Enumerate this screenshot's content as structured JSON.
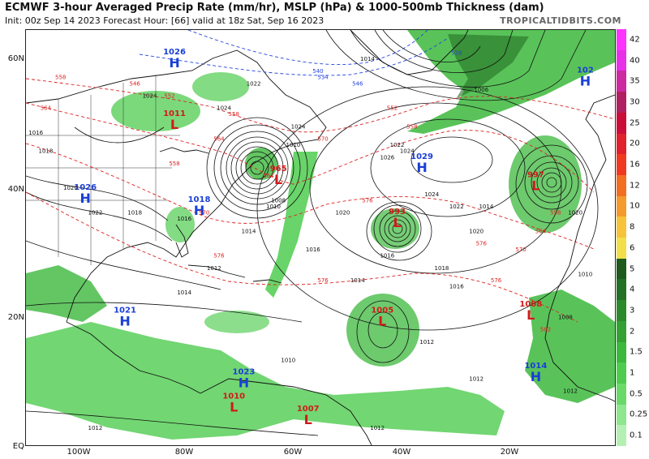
{
  "header": {
    "title": "ECMWF 3-hour Averaged Precip Rate (mm/hr), MSLP (hPa) & 1000-500mb Thickness (dam)",
    "subtitle": "Init: 00z Sep 14 2023   Forecast Hour: [66]   valid at 18z Sat, Sep 16 2023",
    "brand": "TROPICALTIDBITS.COM"
  },
  "axes": {
    "lat_labels": [
      "60N",
      "40N",
      "20N",
      "EQ"
    ],
    "lon_labels": [
      "100W",
      "80W",
      "60W",
      "40W",
      "20W"
    ]
  },
  "colorbar": {
    "labels": [
      "42",
      "40",
      "35",
      "30",
      "25",
      "20",
      "16",
      "12",
      "10",
      "8",
      "6",
      "5",
      "4",
      "3",
      "2",
      "1.5",
      "1",
      "0.5",
      "0.25",
      "0.1"
    ],
    "colors": [
      "#ff33ff",
      "#e830e8",
      "#cc2aa0",
      "#b02060",
      "#cc0d3a",
      "#e0202c",
      "#f03a1f",
      "#f26f22",
      "#f59a2c",
      "#f7c33a",
      "#f2df4a",
      "#1e5a1e",
      "#247024",
      "#2c8a2c",
      "#34a134",
      "#3cb83c",
      "#4fcc4f",
      "#6ad96a",
      "#8ee68e",
      "#b4f0b4"
    ]
  },
  "pressure_systems": [
    {
      "type": "H",
      "value": "1026",
      "lon": -87,
      "lat": 61
    },
    {
      "type": "L",
      "value": "1011",
      "lon": -87,
      "lat": 51
    },
    {
      "type": "H",
      "value": "1026",
      "lon": -105,
      "lat": 39
    },
    {
      "type": "H",
      "value": "1018",
      "lon": -82,
      "lat": 37
    },
    {
      "type": "L",
      "value": "965",
      "lon": -66,
      "lat": 42
    },
    {
      "type": "L",
      "value": "993",
      "lon": -42,
      "lat": 35
    },
    {
      "type": "H",
      "value": "1029",
      "lon": -37,
      "lat": 44
    },
    {
      "type": "L",
      "value": "997",
      "lon": -14,
      "lat": 41
    },
    {
      "type": "H",
      "value": "102",
      "lon": -4,
      "lat": 58
    },
    {
      "type": "H",
      "value": "1021",
      "lon": -97,
      "lat": 19
    },
    {
      "type": "H",
      "value": "1023",
      "lon": -73,
      "lat": 9
    },
    {
      "type": "L",
      "value": "1005",
      "lon": -45,
      "lat": 19
    },
    {
      "type": "L",
      "value": "1008",
      "lon": -15,
      "lat": 20
    },
    {
      "type": "H",
      "value": "1014",
      "lon": -14,
      "lat": 10
    },
    {
      "type": "L",
      "value": "1007",
      "lon": -60,
      "lat": 3
    },
    {
      "type": "L",
      "value": "1010",
      "lon": -75,
      "lat": 5
    }
  ],
  "isobar_labels": [
    {
      "text": "1024",
      "lon": -92,
      "lat": 55
    },
    {
      "text": "1022",
      "lon": -71,
      "lat": 57
    },
    {
      "text": "1014",
      "lon": -48,
      "lat": 61
    },
    {
      "text": "1006",
      "lon": -25,
      "lat": 56
    },
    {
      "text": "1022",
      "lon": -42,
      "lat": 47
    },
    {
      "text": "1024",
      "lon": -40,
      "lat": 46
    },
    {
      "text": "1026",
      "lon": -44,
      "lat": 45
    },
    {
      "text": "1024",
      "lon": -35,
      "lat": 39
    },
    {
      "text": "1022",
      "lon": -30,
      "lat": 37
    },
    {
      "text": "1020",
      "lon": -26,
      "lat": 33
    },
    {
      "text": "1018",
      "lon": -33,
      "lat": 27
    },
    {
      "text": "1016",
      "lon": -44,
      "lat": 29
    },
    {
      "text": "1016",
      "lon": -30,
      "lat": 24
    },
    {
      "text": "1014",
      "lon": -50,
      "lat": 25
    },
    {
      "text": "1014",
      "lon": -72,
      "lat": 33
    },
    {
      "text": "1016",
      "lon": -59,
      "lat": 30
    },
    {
      "text": "1020",
      "lon": -53,
      "lat": 36
    },
    {
      "text": "1008",
      "lon": -66,
      "lat": 38
    },
    {
      "text": "1010",
      "lon": -67,
      "lat": 37
    },
    {
      "text": "1012",
      "lon": -79,
      "lat": 27
    },
    {
      "text": "1014",
      "lon": -85,
      "lat": 23
    },
    {
      "text": "1012",
      "lon": -36,
      "lat": 15
    },
    {
      "text": "1012",
      "lon": -26,
      "lat": 9
    },
    {
      "text": "1012",
      "lon": -46,
      "lat": 1
    },
    {
      "text": "1010",
      "lon": -64,
      "lat": 12
    },
    {
      "text": "1012",
      "lon": -103,
      "lat": 1
    },
    {
      "text": "1016",
      "lon": -115,
      "lat": 49
    },
    {
      "text": "1018",
      "lon": -113,
      "lat": 46
    },
    {
      "text": "1020",
      "lon": -108,
      "lat": 40
    },
    {
      "text": "1022",
      "lon": -103,
      "lat": 36
    },
    {
      "text": "1018",
      "lon": -95,
      "lat": 36
    },
    {
      "text": "1016",
      "lon": -85,
      "lat": 35
    },
    {
      "text": "1010",
      "lon": -4,
      "lat": 26
    },
    {
      "text": "1008",
      "lon": -8,
      "lat": 19
    },
    {
      "text": "1012",
      "lon": -7,
      "lat": 7
    },
    {
      "text": "1014",
      "lon": -24,
      "lat": 37
    },
    {
      "text": "1020",
      "lon": -6,
      "lat": 36
    },
    {
      "text": "1024",
      "lon": -62,
      "lat": 50
    },
    {
      "text": "1010",
      "lon": -63,
      "lat": 47
    },
    {
      "text": "1024",
      "lon": -77,
      "lat": 53
    }
  ],
  "thickness_labels": [
    {
      "text": "558",
      "lon": -110,
      "lat": 58,
      "color": "#dd2222"
    },
    {
      "text": "564",
      "lon": -113,
      "lat": 53,
      "color": "#dd2222"
    },
    {
      "text": "552",
      "lon": -88,
      "lat": 55,
      "color": "#dd2222"
    },
    {
      "text": "558",
      "lon": -75,
      "lat": 52,
      "color": "#dd2222"
    },
    {
      "text": "564",
      "lon": -78,
      "lat": 48,
      "color": "#dd2222"
    },
    {
      "text": "570",
      "lon": -57,
      "lat": 48,
      "color": "#dd2222"
    },
    {
      "text": "552",
      "lon": -43,
      "lat": 53,
      "color": "#dd2222"
    },
    {
      "text": "558",
      "lon": -39,
      "lat": 50,
      "color": "#dd2222"
    },
    {
      "text": "564",
      "lon": -68,
      "lat": 42,
      "color": "#dd2222"
    },
    {
      "text": "558",
      "lon": -87,
      "lat": 44,
      "color": "#dd2222"
    },
    {
      "text": "570",
      "lon": -81,
      "lat": 36,
      "color": "#dd2222"
    },
    {
      "text": "576",
      "lon": -48,
      "lat": 38,
      "color": "#dd2222"
    },
    {
      "text": "576",
      "lon": -78,
      "lat": 29,
      "color": "#dd2222"
    },
    {
      "text": "576",
      "lon": -57,
      "lat": 25,
      "color": "#dd2222"
    },
    {
      "text": "576",
      "lon": -22,
      "lat": 25,
      "color": "#dd2222"
    },
    {
      "text": "570",
      "lon": -17,
      "lat": 30,
      "color": "#dd2222"
    },
    {
      "text": "564",
      "lon": -13,
      "lat": 33,
      "color": "#dd2222"
    },
    {
      "text": "558",
      "lon": -10,
      "lat": 36,
      "color": "#dd2222"
    },
    {
      "text": "534",
      "lon": -57,
      "lat": 58,
      "color": "#2244dd"
    },
    {
      "text": "540",
      "lon": -58,
      "lat": 59,
      "color": "#2244dd"
    },
    {
      "text": "546",
      "lon": -50,
      "lat": 57,
      "color": "#2244dd"
    },
    {
      "text": "528",
      "lon": -30,
      "lat": 62,
      "color": "#2244dd"
    },
    {
      "text": "546",
      "lon": -95,
      "lat": 57,
      "color": "#dd2222"
    },
    {
      "text": "582",
      "lon": -12,
      "lat": 17,
      "color": "#dd2222"
    },
    {
      "text": "576",
      "lon": -25,
      "lat": 31,
      "color": "#dd2222"
    }
  ]
}
